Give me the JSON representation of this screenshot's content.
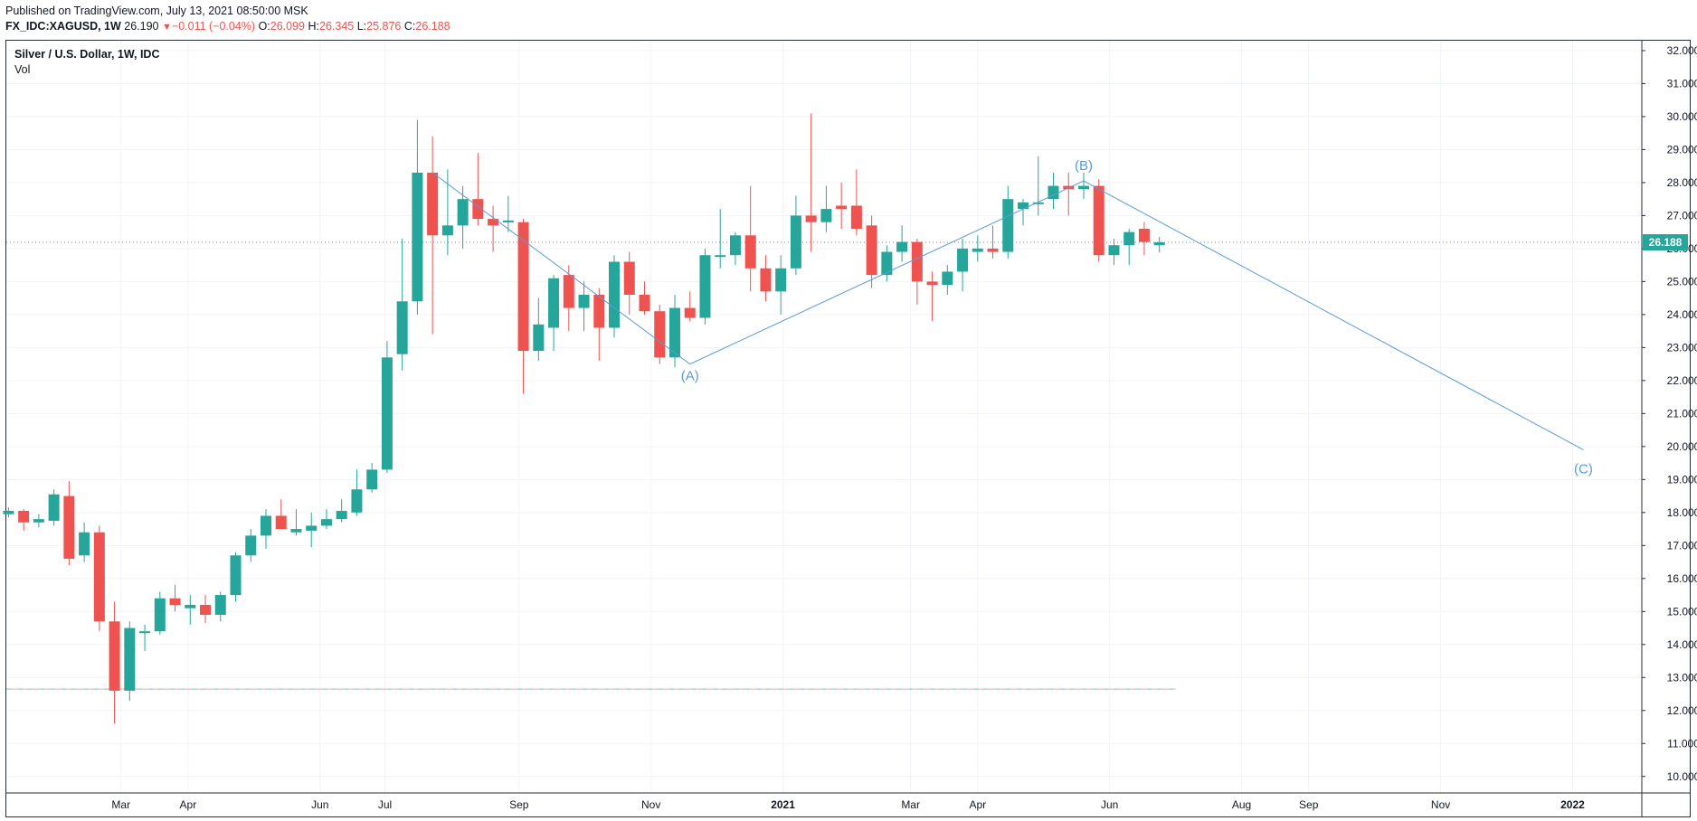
{
  "header": {
    "published": "Published on TradingView.com, July 13, 2021 08:50:00 MSK",
    "symbol": "FX_IDC:XAGUSD, 1W",
    "last": "26.190",
    "change_arrow": "▼",
    "change": "−0.011 (−0.04%)",
    "o_label": "O:",
    "o_value": "26.099",
    "h_label": "H:",
    "h_value": "26.345",
    "l_label": "L:",
    "l_value": "25.876",
    "c_label": "C:",
    "c_value": "26.188"
  },
  "legend": {
    "title": "Silver / U.S. Dollar, 1W, IDC",
    "volume": "Vol"
  },
  "colors": {
    "up": "#26a69a",
    "down": "#ef5350",
    "wave_line": "#5b9bd5",
    "grid": "#f0f3fa",
    "axis_text": "#131722"
  },
  "chart_data": {
    "type": "candlestick",
    "timeframe": "1W",
    "ylim": [
      9.5,
      32.3
    ],
    "y_ticks": [
      "10.000",
      "11.000",
      "12.000",
      "13.000",
      "14.000",
      "15.000",
      "16.000",
      "17.000",
      "18.000",
      "19.000",
      "20.000",
      "21.000",
      "22.000",
      "23.000",
      "24.000",
      "25.000",
      "26.000",
      "27.000",
      "28.000",
      "29.000",
      "30.000",
      "31.000",
      "32.000"
    ],
    "x_ticks": [
      {
        "label": "Mar",
        "date": "2020-03-01"
      },
      {
        "label": "Apr",
        "date": "2020-04-01"
      },
      {
        "label": "Jun",
        "date": "2020-06-01"
      },
      {
        "label": "Jul",
        "date": "2020-07-01"
      },
      {
        "label": "Sep",
        "date": "2020-09-01"
      },
      {
        "label": "Nov",
        "date": "2020-11-01"
      },
      {
        "label": "2021",
        "date": "2021-01-01"
      },
      {
        "label": "Mar",
        "date": "2021-03-01"
      },
      {
        "label": "Apr",
        "date": "2021-04-01"
      },
      {
        "label": "Jun",
        "date": "2021-06-01"
      },
      {
        "label": "Aug",
        "date": "2021-08-01"
      },
      {
        "label": "Sep",
        "date": "2021-09-01"
      },
      {
        "label": "Nov",
        "date": "2021-11-01"
      },
      {
        "label": "2022",
        "date": "2022-01-01"
      }
    ],
    "x_range": [
      "2020-01-08",
      "2022-02-02"
    ],
    "last_price": "26.188",
    "last_price_value": 26.188,
    "volume_line_level": 12.65,
    "candles": [
      {
        "date": "2020-01-09",
        "o": 17.95,
        "h": 18.15,
        "l": 17.85,
        "c": 18.05
      },
      {
        "date": "2020-01-16",
        "o": 18.05,
        "h": 18.1,
        "l": 17.45,
        "c": 17.7
      },
      {
        "date": "2020-01-23",
        "o": 17.7,
        "h": 17.95,
        "l": 17.55,
        "c": 17.8
      },
      {
        "date": "2020-01-30",
        "o": 17.75,
        "h": 18.7,
        "l": 17.6,
        "c": 18.55
      },
      {
        "date": "2020-02-06",
        "o": 18.5,
        "h": 18.95,
        "l": 16.4,
        "c": 16.6
      },
      {
        "date": "2020-02-13",
        "o": 16.7,
        "h": 17.7,
        "l": 16.5,
        "c": 17.4
      },
      {
        "date": "2020-02-20",
        "o": 17.4,
        "h": 17.6,
        "l": 14.4,
        "c": 14.7
      },
      {
        "date": "2020-02-27",
        "o": 14.7,
        "h": 15.3,
        "l": 11.6,
        "c": 12.6
      },
      {
        "date": "2020-03-05",
        "o": 12.6,
        "h": 14.7,
        "l": 12.3,
        "c": 14.5
      },
      {
        "date": "2020-03-12",
        "o": 14.4,
        "h": 14.6,
        "l": 13.8,
        "c": 14.4
      },
      {
        "date": "2020-03-19",
        "o": 14.4,
        "h": 15.6,
        "l": 14.3,
        "c": 15.4
      },
      {
        "date": "2020-03-26",
        "o": 15.4,
        "h": 15.8,
        "l": 15.0,
        "c": 15.2
      },
      {
        "date": "2020-04-02",
        "o": 15.1,
        "h": 15.5,
        "l": 14.6,
        "c": 15.2
      },
      {
        "date": "2020-04-09",
        "o": 15.2,
        "h": 15.5,
        "l": 14.65,
        "c": 14.9
      },
      {
        "date": "2020-04-16",
        "o": 14.9,
        "h": 15.6,
        "l": 14.7,
        "c": 15.5
      },
      {
        "date": "2020-04-23",
        "o": 15.5,
        "h": 16.8,
        "l": 15.3,
        "c": 16.7
      },
      {
        "date": "2020-04-30",
        "o": 16.7,
        "h": 17.5,
        "l": 16.5,
        "c": 17.3
      },
      {
        "date": "2020-05-07",
        "o": 17.3,
        "h": 18.1,
        "l": 16.9,
        "c": 17.9
      },
      {
        "date": "2020-05-14",
        "o": 17.9,
        "h": 18.4,
        "l": 17.5,
        "c": 17.5
      },
      {
        "date": "2020-05-21",
        "o": 17.4,
        "h": 18.1,
        "l": 17.3,
        "c": 17.5
      },
      {
        "date": "2020-05-28",
        "o": 17.45,
        "h": 18.0,
        "l": 16.95,
        "c": 17.6
      },
      {
        "date": "2020-06-04",
        "o": 17.6,
        "h": 18.1,
        "l": 17.5,
        "c": 17.8
      },
      {
        "date": "2020-06-11",
        "o": 17.8,
        "h": 18.4,
        "l": 17.7,
        "c": 18.05
      },
      {
        "date": "2020-06-18",
        "o": 18.0,
        "h": 19.3,
        "l": 17.9,
        "c": 18.7
      },
      {
        "date": "2020-06-25",
        "o": 18.7,
        "h": 19.5,
        "l": 18.6,
        "c": 19.3
      },
      {
        "date": "2020-07-02",
        "o": 19.3,
        "h": 23.2,
        "l": 19.2,
        "c": 22.7
      },
      {
        "date": "2020-07-09",
        "o": 22.8,
        "h": 26.3,
        "l": 22.3,
        "c": 24.4
      },
      {
        "date": "2020-07-16",
        "o": 24.4,
        "h": 29.9,
        "l": 24.0,
        "c": 28.3
      },
      {
        "date": "2020-07-23",
        "o": 28.3,
        "h": 29.4,
        "l": 23.4,
        "c": 26.4
      },
      {
        "date": "2020-07-30",
        "o": 26.4,
        "h": 28.4,
        "l": 25.8,
        "c": 26.7
      },
      {
        "date": "2020-08-06",
        "o": 26.7,
        "h": 27.9,
        "l": 26.0,
        "c": 27.5
      },
      {
        "date": "2020-08-13",
        "o": 27.5,
        "h": 28.9,
        "l": 26.7,
        "c": 26.9
      },
      {
        "date": "2020-08-20",
        "o": 26.9,
        "h": 27.3,
        "l": 25.9,
        "c": 26.7
      },
      {
        "date": "2020-08-27",
        "o": 26.8,
        "h": 27.6,
        "l": 26.5,
        "c": 26.85
      },
      {
        "date": "2020-09-03",
        "o": 26.8,
        "h": 26.9,
        "l": 21.6,
        "c": 22.9
      },
      {
        "date": "2020-09-10",
        "o": 22.9,
        "h": 24.5,
        "l": 22.6,
        "c": 23.7
      },
      {
        "date": "2020-09-17",
        "o": 23.6,
        "h": 25.2,
        "l": 22.9,
        "c": 25.1
      },
      {
        "date": "2020-09-24",
        "o": 25.2,
        "h": 25.5,
        "l": 23.5,
        "c": 24.2
      },
      {
        "date": "2020-10-01",
        "o": 24.2,
        "h": 25.0,
        "l": 23.5,
        "c": 24.6
      },
      {
        "date": "2020-10-08",
        "o": 24.6,
        "h": 24.8,
        "l": 22.6,
        "c": 23.6
      },
      {
        "date": "2020-10-15",
        "o": 23.6,
        "h": 25.8,
        "l": 23.3,
        "c": 25.6
      },
      {
        "date": "2020-10-22",
        "o": 25.6,
        "h": 25.9,
        "l": 24.0,
        "c": 24.6
      },
      {
        "date": "2020-10-29",
        "o": 24.6,
        "h": 25.0,
        "l": 24.0,
        "c": 24.1
      },
      {
        "date": "2020-11-05",
        "o": 24.1,
        "h": 24.3,
        "l": 22.5,
        "c": 22.7
      },
      {
        "date": "2020-11-12",
        "o": 22.7,
        "h": 24.6,
        "l": 22.4,
        "c": 24.2
      },
      {
        "date": "2020-11-19",
        "o": 24.2,
        "h": 24.7,
        "l": 23.8,
        "c": 23.9
      },
      {
        "date": "2020-11-26",
        "o": 23.9,
        "h": 26.0,
        "l": 23.7,
        "c": 25.8
      },
      {
        "date": "2020-12-03",
        "o": 25.8,
        "h": 27.2,
        "l": 25.4,
        "c": 25.8
      },
      {
        "date": "2020-12-10",
        "o": 25.8,
        "h": 26.5,
        "l": 25.5,
        "c": 26.4
      },
      {
        "date": "2020-12-17",
        "o": 26.4,
        "h": 27.9,
        "l": 24.7,
        "c": 25.4
      },
      {
        "date": "2020-12-24",
        "o": 25.4,
        "h": 25.8,
        "l": 24.4,
        "c": 24.7
      },
      {
        "date": "2020-12-31",
        "o": 24.7,
        "h": 25.8,
        "l": 24.0,
        "c": 25.4
      },
      {
        "date": "2021-01-07",
        "o": 25.4,
        "h": 27.6,
        "l": 25.2,
        "c": 27.0
      },
      {
        "date": "2021-01-14",
        "o": 27.0,
        "h": 30.1,
        "l": 25.9,
        "c": 26.8
      },
      {
        "date": "2021-01-21",
        "o": 26.8,
        "h": 27.9,
        "l": 26.5,
        "c": 27.2
      },
      {
        "date": "2021-01-28",
        "o": 27.3,
        "h": 28.0,
        "l": 26.6,
        "c": 27.2
      },
      {
        "date": "2021-02-04",
        "o": 27.3,
        "h": 28.4,
        "l": 26.4,
        "c": 26.6
      },
      {
        "date": "2021-02-11",
        "o": 26.7,
        "h": 27.0,
        "l": 24.8,
        "c": 25.2
      },
      {
        "date": "2021-02-18",
        "o": 25.2,
        "h": 26.1,
        "l": 25.0,
        "c": 25.9
      },
      {
        "date": "2021-02-25",
        "o": 25.9,
        "h": 26.7,
        "l": 25.6,
        "c": 26.2
      },
      {
        "date": "2021-03-04",
        "o": 26.2,
        "h": 26.3,
        "l": 24.3,
        "c": 25.0
      },
      {
        "date": "2021-03-11",
        "o": 25.0,
        "h": 25.3,
        "l": 23.8,
        "c": 24.9
      },
      {
        "date": "2021-03-18",
        "o": 24.9,
        "h": 25.5,
        "l": 24.6,
        "c": 25.3
      },
      {
        "date": "2021-03-25",
        "o": 25.3,
        "h": 26.3,
        "l": 24.7,
        "c": 26.0
      },
      {
        "date": "2021-04-01",
        "o": 25.9,
        "h": 26.4,
        "l": 25.6,
        "c": 26.0
      },
      {
        "date": "2021-04-08",
        "o": 26.0,
        "h": 26.7,
        "l": 25.7,
        "c": 25.9
      },
      {
        "date": "2021-04-15",
        "o": 25.9,
        "h": 27.9,
        "l": 25.7,
        "c": 27.5
      },
      {
        "date": "2021-04-22",
        "o": 27.2,
        "h": 27.5,
        "l": 26.7,
        "c": 27.4
      },
      {
        "date": "2021-04-29",
        "o": 27.4,
        "h": 28.8,
        "l": 27.0,
        "c": 27.4
      },
      {
        "date": "2021-05-06",
        "o": 27.5,
        "h": 28.3,
        "l": 27.2,
        "c": 27.9
      },
      {
        "date": "2021-05-13",
        "o": 27.9,
        "h": 28.3,
        "l": 27.0,
        "c": 27.8
      },
      {
        "date": "2021-05-20",
        "o": 27.8,
        "h": 28.3,
        "l": 27.5,
        "c": 27.9
      },
      {
        "date": "2021-05-27",
        "o": 27.9,
        "h": 28.1,
        "l": 25.6,
        "c": 25.8
      },
      {
        "date": "2021-06-03",
        "o": 25.8,
        "h": 26.3,
        "l": 25.5,
        "c": 26.1
      },
      {
        "date": "2021-06-10",
        "o": 26.1,
        "h": 26.6,
        "l": 25.5,
        "c": 26.5
      },
      {
        "date": "2021-06-17",
        "o": 26.6,
        "h": 26.8,
        "l": 25.8,
        "c": 26.2
      },
      {
        "date": "2021-06-24",
        "o": 26.1,
        "h": 26.35,
        "l": 25.88,
        "c": 26.19
      }
    ],
    "wave_labels": [
      {
        "text": "(A)",
        "date": "2020-11-19",
        "value": 22.5
      },
      {
        "text": "(B)",
        "date": "2021-05-20",
        "value": 28.05
      },
      {
        "text": "(C)",
        "date": "2022-01-06",
        "value": 19.9
      }
    ],
    "wave_line": [
      {
        "date": "2020-07-23",
        "value": 28.3
      },
      {
        "date": "2020-11-19",
        "value": 22.5
      },
      {
        "date": "2021-05-20",
        "value": 28.05
      },
      {
        "date": "2022-01-06",
        "value": 19.9
      }
    ]
  }
}
